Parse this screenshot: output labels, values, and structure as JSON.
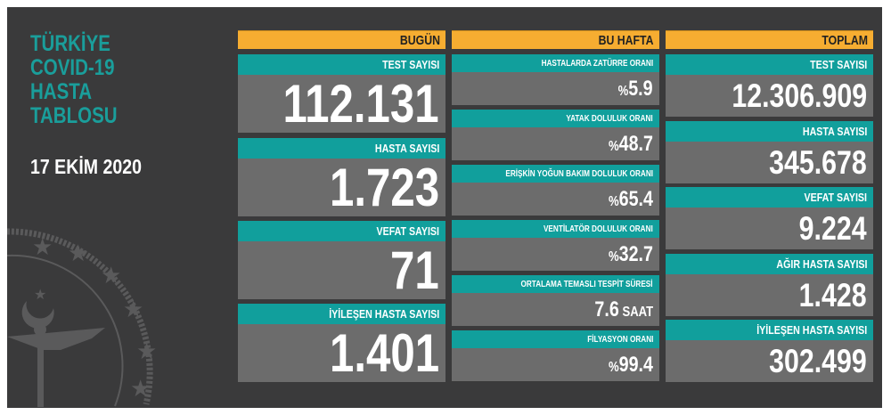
{
  "title_lines": [
    "TÜRKİYE",
    "COVID-19",
    "HASTA",
    "TABLOSU"
  ],
  "date": "17 EKİM 2020",
  "colors": {
    "background": "#3a3a3b",
    "header": "#f6ad31",
    "label": "#119f9c",
    "value_box": "#6c6c6c"
  },
  "today": {
    "header": "BUGÜN",
    "items": [
      {
        "label": "TEST SAYISI",
        "value": "112.131"
      },
      {
        "label": "HASTA SAYISI",
        "value": "1.723"
      },
      {
        "label": "VEFAT SAYISI",
        "value": "71"
      },
      {
        "label": "İYİLEŞEN HASTA SAYISI",
        "value": "1.401"
      }
    ]
  },
  "this_week": {
    "header": "BU HAFTA",
    "items": [
      {
        "label": "HASTALARDA ZATÜRRE ORANI",
        "prefix": "%",
        "value": "5.9",
        "suffix": ""
      },
      {
        "label": "YATAK DOLULUK ORANI",
        "prefix": "%",
        "value": "48.7",
        "suffix": ""
      },
      {
        "label": "ERİŞKİN YOĞUN BAKIM DOLULUK ORANI",
        "prefix": "%",
        "value": "65.4",
        "suffix": ""
      },
      {
        "label": "VENTİLATÖR DOLULUK ORANI",
        "prefix": "%",
        "value": "32.7",
        "suffix": ""
      },
      {
        "label": "ORTALAMA TEMASLI TESPİT SÜRESİ",
        "prefix": "",
        "value": "7.6",
        "suffix": " SAAT"
      },
      {
        "label": "FİLYASYON ORANI",
        "prefix": "%",
        "value": "99.4",
        "suffix": ""
      }
    ]
  },
  "total": {
    "header": "TOPLAM",
    "items": [
      {
        "label": "TEST SAYISI",
        "value": "12.306.909"
      },
      {
        "label": "HASTA SAYISI",
        "value": "345.678"
      },
      {
        "label": "VEFAT SAYISI",
        "value": "9.224"
      },
      {
        "label": "AĞIR HASTA SAYISI",
        "value": "1.428"
      },
      {
        "label": "İYİLEŞEN HASTA SAYISI",
        "value": "302.499"
      }
    ]
  }
}
